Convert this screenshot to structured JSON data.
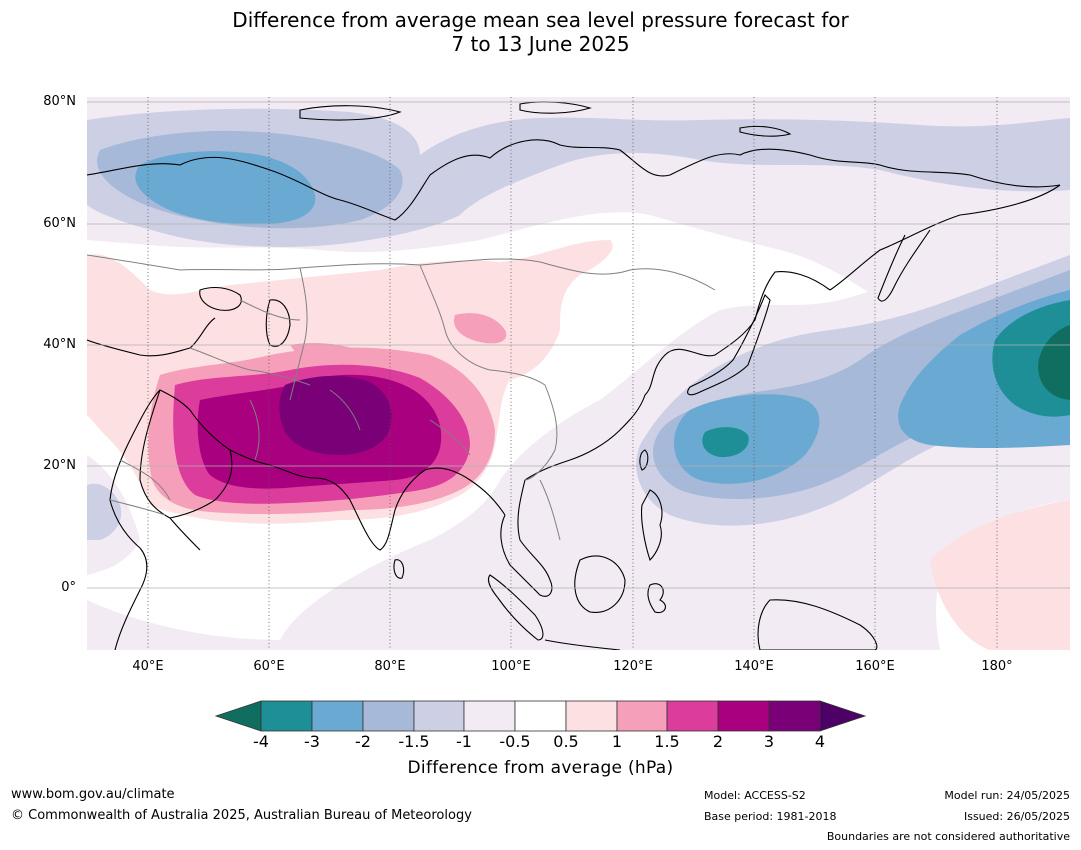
{
  "title_line1": "Difference from average mean sea level pressure forecast for",
  "title_line2": "7 to 13 June 2025",
  "map": {
    "lat_labels": [
      "80°N",
      "60°N",
      "40°N",
      "20°N",
      "0°"
    ],
    "lon_labels": [
      "40°E",
      "60°E",
      "80°E",
      "100°E",
      "120°E",
      "140°E",
      "160°E",
      "180°"
    ],
    "extent": {
      "lon_min": 30,
      "lon_max": 192,
      "lat_min": -10,
      "lat_max": 81
    }
  },
  "colorbar": {
    "ticks": [
      "-4",
      "-3",
      "-2",
      "-1.5",
      "-1",
      "-0.5",
      "0.5",
      "1",
      "1.5",
      "2",
      "3",
      "4"
    ],
    "colors": [
      "#0f6e5f",
      "#1e8f96",
      "#6aa9d2",
      "#a6b9d8",
      "#cdd0e4",
      "#f2ebf4",
      "#ffffff",
      "#fde0e2",
      "#f59fbb",
      "#dc3c9b",
      "#a9007f",
      "#7a0078",
      "#4d0066"
    ],
    "label": "Difference from average (hPa)"
  },
  "footer": {
    "website": "www.bom.gov.au/climate",
    "copyright": "© Commonwealth of Australia 2025, Australian Bureau of Meteorology",
    "model": "Model: ACCESS-S2",
    "base_period": "Base period: 1981-2018",
    "model_run": "Model run: 24/05/2025",
    "issued": "Issued: 26/05/2025",
    "disclaimer": "Boundaries are not considered authoritative"
  }
}
